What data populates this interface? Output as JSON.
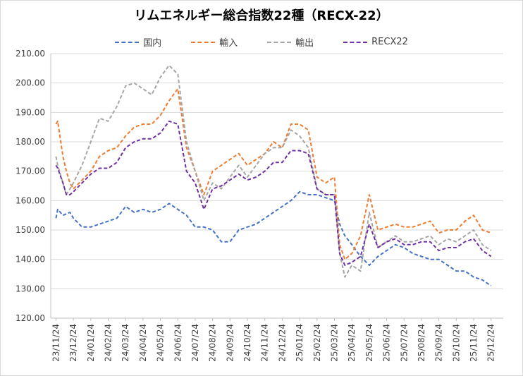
{
  "chart_data": {
    "type": "line",
    "title": "リムエネルギー総合指数22種（RECX-22）",
    "xlabel": "",
    "ylabel": "",
    "ylim": [
      120,
      210
    ],
    "yticks": [
      "120.00",
      "130.00",
      "140.00",
      "150.00",
      "160.00",
      "170.00",
      "180.00",
      "190.00",
      "200.00",
      "210.00"
    ],
    "categories": [
      "23/11/24",
      "23/12/24",
      "24/01/24",
      "24/02/24",
      "24/03/24",
      "24/04/24",
      "24/05/24",
      "24/06/24",
      "24/07/24",
      "24/08/24",
      "24/09/24",
      "24/10/24",
      "24/11/24",
      "24/12/24",
      "25/01/24",
      "25/02/24",
      "25/03/24",
      "25/04/24",
      "25/05/24",
      "25/06/24",
      "25/07/24",
      "25/08/24",
      "25/09/24",
      "25/10/24",
      "25/11/24",
      "25/12/24"
    ],
    "x_note_first_category_index": 0,
    "grid": true,
    "legend_position": "top",
    "series": [
      {
        "name": "国内",
        "color": "#4472c4",
        "x": [
          0,
          0.1,
          0.4,
          0.8,
          1.0,
          1.5,
          2.0,
          2.5,
          3.0,
          3.5,
          4.0,
          4.5,
          5.0,
          5.5,
          6.0,
          6.5,
          7.0,
          7.5,
          8.0,
          8.5,
          9.0,
          9.5,
          10.0,
          10.5,
          11.0,
          11.5,
          12.0,
          12.5,
          13.0,
          13.5,
          14.0,
          14.5,
          15.0,
          15.5,
          16.0,
          16.3,
          16.6,
          17.0,
          17.5,
          18.0,
          18.5,
          19.0,
          19.5,
          20.0,
          20.5,
          21.0,
          21.5,
          22.0,
          22.5,
          23.0,
          23.5,
          24.0,
          24.5,
          25.0
        ],
        "y": [
          154,
          157,
          155,
          156,
          154,
          151,
          151,
          152,
          153,
          154,
          158,
          156,
          157,
          156,
          157,
          159,
          157,
          155,
          151,
          151,
          150,
          146,
          146,
          150,
          151,
          152,
          154,
          156,
          158,
          160,
          163,
          162,
          162,
          161,
          160,
          152,
          148,
          145,
          141,
          138,
          141,
          143,
          145,
          144,
          142,
          141,
          140,
          140,
          138,
          136,
          136,
          134,
          133,
          131
        ]
      },
      {
        "name": "輸入",
        "color": "#ed7d31",
        "x": [
          0,
          0.1,
          0.4,
          0.6,
          0.8,
          1.0,
          1.5,
          2.0,
          2.5,
          3.0,
          3.5,
          4.0,
          4.5,
          5.0,
          5.5,
          6.0,
          6.5,
          7.0,
          7.5,
          8.0,
          8.5,
          9.0,
          9.5,
          10.0,
          10.5,
          11.0,
          11.5,
          12.0,
          12.5,
          13.0,
          13.5,
          14.0,
          14.5,
          15.0,
          15.5,
          16.0,
          16.3,
          16.6,
          17.0,
          17.5,
          18.0,
          18.5,
          19.0,
          19.5,
          20.0,
          20.5,
          21.0,
          21.5,
          22.0,
          22.5,
          23.0,
          23.5,
          24.0,
          24.5,
          25.0
        ],
        "y": [
          186,
          187,
          175,
          170,
          166,
          164,
          167,
          170,
          175,
          177,
          178,
          182,
          185,
          186,
          186,
          189,
          194,
          198,
          178,
          170,
          162,
          170,
          172,
          174,
          176,
          172,
          174,
          176,
          180,
          178,
          186,
          186,
          184,
          168,
          166,
          168,
          145,
          140,
          142,
          148,
          162,
          150,
          151,
          152,
          151,
          151,
          152,
          153,
          149,
          150,
          150,
          153,
          155,
          150,
          149
        ]
      },
      {
        "name": "輸出",
        "color": "#a5a5a5",
        "x": [
          0,
          0.1,
          0.4,
          0.6,
          0.8,
          1.0,
          1.5,
          2.0,
          2.5,
          3.0,
          3.5,
          4.0,
          4.5,
          5.0,
          5.5,
          6.0,
          6.5,
          7.0,
          7.5,
          8.0,
          8.5,
          9.0,
          9.5,
          10.0,
          10.5,
          11.0,
          11.5,
          12.0,
          12.5,
          13.0,
          13.5,
          14.0,
          14.5,
          15.0,
          15.5,
          16.0,
          16.3,
          16.6,
          17.0,
          17.5,
          18.0,
          18.5,
          19.0,
          19.5,
          20.0,
          20.5,
          21.0,
          21.5,
          22.0,
          22.5,
          23.0,
          23.5,
          24.0,
          24.5,
          25.0
        ],
        "y": [
          175,
          172,
          166,
          162,
          164,
          166,
          172,
          180,
          188,
          187,
          192,
          199,
          200,
          198,
          196,
          202,
          206,
          203,
          180,
          170,
          160,
          166,
          164,
          168,
          172,
          168,
          172,
          176,
          178,
          178,
          184,
          182,
          178,
          164,
          162,
          162,
          142,
          134,
          138,
          136,
          156,
          144,
          146,
          148,
          146,
          146,
          147,
          148,
          145,
          147,
          146,
          148,
          150,
          145,
          143
        ]
      },
      {
        "name": "RECX22",
        "color": "#7030a0",
        "x": [
          0,
          0.1,
          0.4,
          0.6,
          0.8,
          1.0,
          1.5,
          2.0,
          2.5,
          3.0,
          3.5,
          4.0,
          4.5,
          5.0,
          5.5,
          6.0,
          6.5,
          7.0,
          7.5,
          8.0,
          8.5,
          9.0,
          9.5,
          10.0,
          10.5,
          11.0,
          11.5,
          12.0,
          12.5,
          13.0,
          13.5,
          14.0,
          14.5,
          15.0,
          15.5,
          16.0,
          16.3,
          16.6,
          17.0,
          17.5,
          18.0,
          18.5,
          19.0,
          19.5,
          20.0,
          20.5,
          21.0,
          21.5,
          22.0,
          22.5,
          23.0,
          23.5,
          24.0,
          24.5,
          25.0
        ],
        "y": [
          172,
          171,
          166,
          162,
          162,
          163,
          166,
          169,
          171,
          171,
          173,
          178,
          180,
          181,
          181,
          183,
          187,
          186,
          170,
          166,
          157,
          164,
          165,
          167,
          169,
          167,
          168,
          170,
          173,
          173,
          177,
          177,
          176,
          164,
          162,
          162,
          142,
          138,
          139,
          141,
          152,
          144,
          146,
          147,
          145,
          145,
          146,
          146,
          143,
          144,
          144,
          146,
          147,
          143,
          141
        ]
      }
    ]
  }
}
